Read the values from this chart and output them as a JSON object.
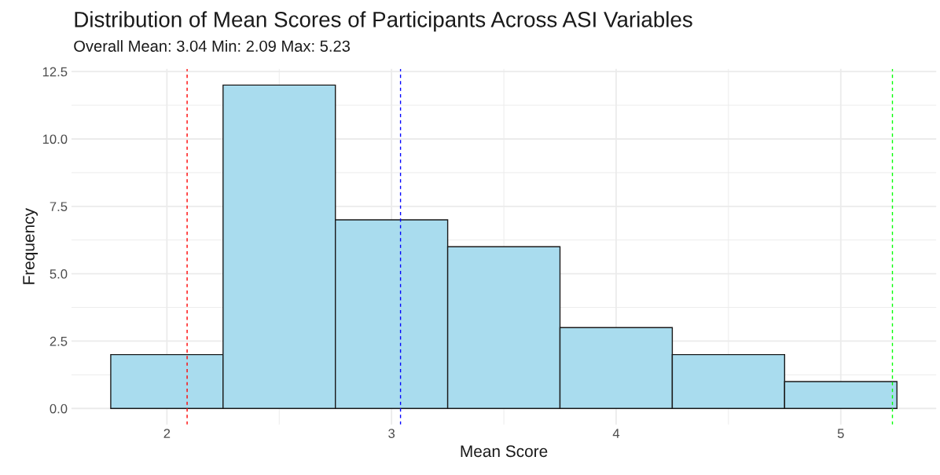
{
  "chart_data": {
    "type": "histogram",
    "title": "Distribution of Mean Scores of Participants Across ASI Variables",
    "subtitle": "Overall Mean: 3.04 Min: 2.09 Max: 5.23",
    "xlabel": "Mean Score",
    "ylabel": "Frequency",
    "bins": [
      1.75,
      2.25,
      2.75,
      3.25,
      3.75,
      4.25,
      4.75,
      5.25
    ],
    "values": [
      2,
      12,
      7,
      6,
      3,
      2,
      1
    ],
    "color": "#a9dcee",
    "xlim": [
      1.575,
      5.425
    ],
    "xticks": [
      2,
      {
        "value": 2.5,
        "label": null
      },
      3,
      {
        "value": 3.5,
        "label": null
      },
      4,
      {
        "value": 4.5,
        "label": null
      },
      5
    ],
    "ylim": [
      -0.6,
      12.6
    ],
    "yticks": [
      {
        "value": 0,
        "label": "0.0"
      },
      {
        "value": 1.25,
        "label": null
      },
      2.5,
      {
        "value": 3.75,
        "label": null
      },
      {
        "value": 5,
        "label": "5.0"
      },
      {
        "value": 6.25,
        "label": null
      },
      7.5,
      {
        "value": 8.75,
        "label": null
      },
      {
        "value": 10,
        "label": "10.0"
      },
      {
        "value": 11.25,
        "label": null
      },
      12.5
    ],
    "grid": true,
    "ref_lines": [
      {
        "axis": "x",
        "value": 2.09,
        "color": "#ff0000",
        "line_style": "dashed"
      },
      {
        "axis": "x",
        "value": 3.04,
        "color": "#0000ff",
        "line_style": "dashed"
      },
      {
        "axis": "x",
        "value": 5.23,
        "color": "#00ff00",
        "line_style": "dashed"
      }
    ]
  }
}
